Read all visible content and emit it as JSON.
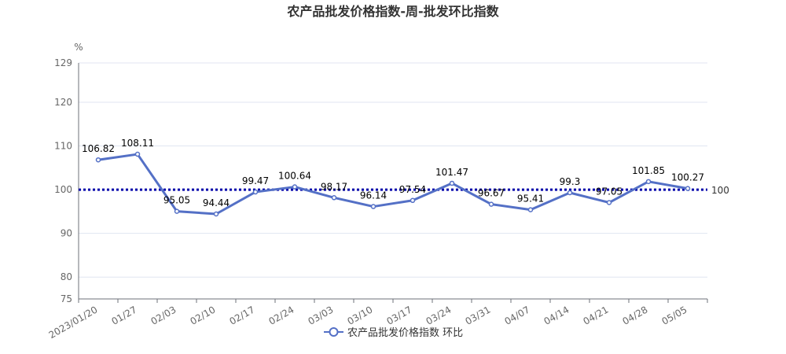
{
  "chart_data": {
    "type": "line",
    "title": "农产品批发价格指数-周-批发环比指数",
    "ylabel": "%",
    "ylim": [
      75,
      129
    ],
    "yticks": [
      75,
      80,
      90,
      100,
      110,
      120,
      129
    ],
    "grid": true,
    "legend_position": "bottom",
    "categories": [
      "2023/01/20",
      "01/27",
      "02/03",
      "02/10",
      "02/17",
      "02/24",
      "03/03",
      "03/10",
      "03/17",
      "03/24",
      "03/31",
      "04/07",
      "04/14",
      "04/21",
      "04/28",
      "05/05"
    ],
    "series": [
      {
        "name": "农产品批发价格指数 环比",
        "color": "#5470c6",
        "values": [
          106.82,
          108.11,
          95.05,
          94.44,
          99.47,
          100.64,
          98.17,
          96.14,
          97.54,
          101.47,
          96.67,
          95.41,
          99.3,
          97.05,
          101.85,
          100.27
        ]
      }
    ],
    "reference_line": {
      "value": 100,
      "label": "100",
      "color": "#0000aa",
      "style": "dotted"
    }
  }
}
